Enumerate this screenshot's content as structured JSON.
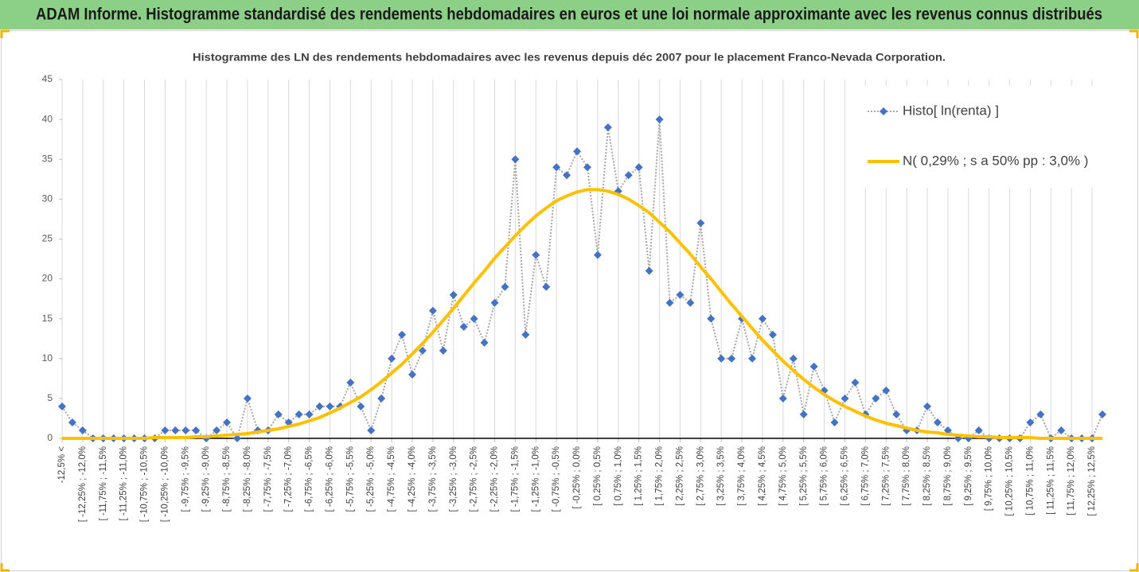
{
  "chart_data": {
    "type": "line",
    "title": "ADAM Informe. Histogramme standardisé des rendements hebdomadaires en euros et une loi normale approximante avec les revenus connus distribués",
    "subtitle": "Histogramme des LN des rendements hebdomadaires avec les revenus depuis déc 2007 pour le placement Franco-Nevada Corporation.",
    "categories": [
      "-12,5% <",
      null,
      "[ -12,25% ; -12,0%",
      null,
      "[ -11,75% ; -11,5%",
      null,
      "[ -11,25% ; -11,0%",
      null,
      "[ -10,75% ; -10,5%",
      null,
      "[ -10,25% ; -10,0%",
      null,
      "[ -9,75% ; -9,5%",
      null,
      "[ -9,25% ; -9,0%",
      null,
      "[ -8,75% ; -8,5%",
      null,
      "[ -8,25% ; -8,0%",
      null,
      "[ -7,75% ; -7,5%",
      null,
      "[ -7,25% ; -7,0%",
      null,
      "[ -6,75% ; -6,5%",
      null,
      "[ -6,25% ; -6,0%",
      null,
      "[ -5,75% ; -5,5%",
      null,
      "[ -5,25% ; -5,0%",
      null,
      "[ -4,75% ; -4,5%",
      null,
      "[ -4,25% ; -4,0%",
      null,
      "[ -3,75% ; -3,5%",
      null,
      "[ -3,25% ; -3,0%",
      null,
      "[ -2,75% ; -2,5%",
      null,
      "[ -2,25% ; -2,0%",
      null,
      "[ -1,75% ; -1,5%",
      null,
      "[ -1,25% ; -1,0%",
      null,
      "[ -0,75% ; -0,5%",
      null,
      "[ -0,25% ; 0,0%",
      null,
      "[ 0,25% ; 0,5%",
      null,
      "[ 0,75% ; 1,0%",
      null,
      "[ 1,25% ; 1,5%",
      null,
      "[ 1,75% ; 2,0%",
      null,
      "[ 2,25% ; 2,5%",
      null,
      "[ 2,75% ; 3,0%",
      null,
      "[ 3,25% ; 3,5%",
      null,
      "[ 3,75% ; 4,0%",
      null,
      "[ 4,25% ; 4,5%",
      null,
      "[ 4,75% ; 5,0%",
      null,
      "[ 5,25% ; 5,5%",
      null,
      "[ 5,75% ; 6,0%",
      null,
      "[ 6,25% ; 6,5%",
      null,
      "[ 6,75% ; 7,0%",
      null,
      "[ 7,25% ; 7,5%",
      null,
      "[ 7,75% ; 8,0%",
      null,
      "[ 8,25% ; 8,5%",
      null,
      "[ 8,75% ; 9,0%",
      null,
      "[ 9,25% ; 9,5%",
      null,
      "[ 9,75% ; 10,0%",
      null,
      "[ 10,25% ; 10,5%",
      null,
      "[ 10,75% ; 11,0%",
      null,
      "[ 11,25% ; 11,5%",
      null,
      "[ 11,75% ; 12,0%",
      null,
      "[ 12,25% ; 12,5%",
      null
    ],
    "series": [
      {
        "name": "Histo[ ln(renta) ]",
        "color": "#4472c4",
        "line_color": "#a6a6a6",
        "marker": "diamond",
        "dash": "dotted",
        "values": [
          4,
          2,
          1,
          0,
          0,
          0,
          0,
          0,
          0,
          0,
          1,
          1,
          1,
          1,
          0,
          1,
          2,
          0,
          5,
          1,
          1,
          3,
          2,
          3,
          3,
          4,
          4,
          4,
          7,
          4,
          1,
          5,
          10,
          13,
          8,
          11,
          16,
          11,
          18,
          14,
          15,
          12,
          17,
          19,
          35,
          13,
          23,
          19,
          34,
          33,
          36,
          34,
          23,
          39,
          31,
          33,
          34,
          21,
          40,
          17,
          18,
          17,
          27,
          15,
          10,
          10,
          15,
          10,
          15,
          13,
          5,
          10,
          3,
          9,
          6,
          2,
          5,
          7,
          3,
          5,
          6,
          3,
          1,
          1,
          4,
          2,
          1,
          0,
          0,
          1,
          0,
          0,
          0,
          0,
          2,
          3,
          0,
          1,
          0,
          0,
          0,
          3
        ]
      },
      {
        "name": "N( 0,29% ; s a 50% pp : 3,0% )",
        "color": "#ffc000",
        "marker": "none",
        "dash": "solid",
        "values": [
          0.0,
          0.0,
          0.0,
          0.0,
          0.0,
          0.0,
          0.0,
          0.0,
          0.0,
          0.1,
          0.1,
          0.1,
          0.1,
          0.2,
          0.2,
          0.3,
          0.4,
          0.5,
          0.6,
          0.8,
          1.0,
          1.2,
          1.5,
          1.8,
          2.2,
          2.6,
          3.2,
          3.8,
          4.5,
          5.2,
          6.1,
          7.1,
          8.2,
          9.3,
          10.6,
          11.9,
          13.3,
          14.8,
          16.3,
          17.9,
          19.5,
          21.0,
          22.6,
          24.0,
          25.4,
          26.7,
          27.9,
          28.9,
          29.8,
          30.4,
          30.9,
          31.2,
          31.2,
          31.0,
          30.6,
          30.0,
          29.2,
          28.3,
          27.1,
          25.9,
          24.5,
          23.1,
          21.5,
          20.0,
          18.4,
          16.8,
          15.3,
          13.8,
          12.3,
          11.0,
          9.7,
          8.5,
          7.4,
          6.4,
          5.5,
          4.7,
          4.0,
          3.4,
          2.8,
          2.3,
          1.9,
          1.6,
          1.3,
          1.0,
          0.8,
          0.7,
          0.5,
          0.4,
          0.3,
          0.2,
          0.2,
          0.1,
          0.1,
          0.1,
          0.1,
          0.0,
          0.0,
          0.0,
          0.0,
          0.0,
          0.0,
          0.0
        ]
      }
    ],
    "ylim": [
      0,
      45
    ],
    "yticks": [
      0,
      5,
      10,
      15,
      20,
      25,
      30,
      35,
      40,
      45
    ],
    "grid": true,
    "legend": "upper right"
  }
}
